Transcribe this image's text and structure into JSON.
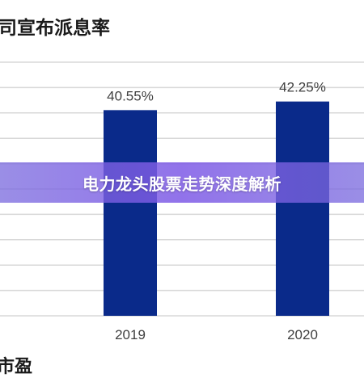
{
  "chart_data": {
    "type": "bar",
    "title": "司宣布派息率",
    "categories": [
      "2019",
      "2020"
    ],
    "values": [
      40.55,
      42.25
    ],
    "value_labels": [
      "40.55%",
      "42.25%"
    ],
    "ylim": [
      0,
      50
    ],
    "grid": true,
    "bar_color": "#0a2a8a"
  },
  "banner": {
    "text": "电力龙头股票走势深度解析"
  },
  "footer_fragment": "市盈"
}
